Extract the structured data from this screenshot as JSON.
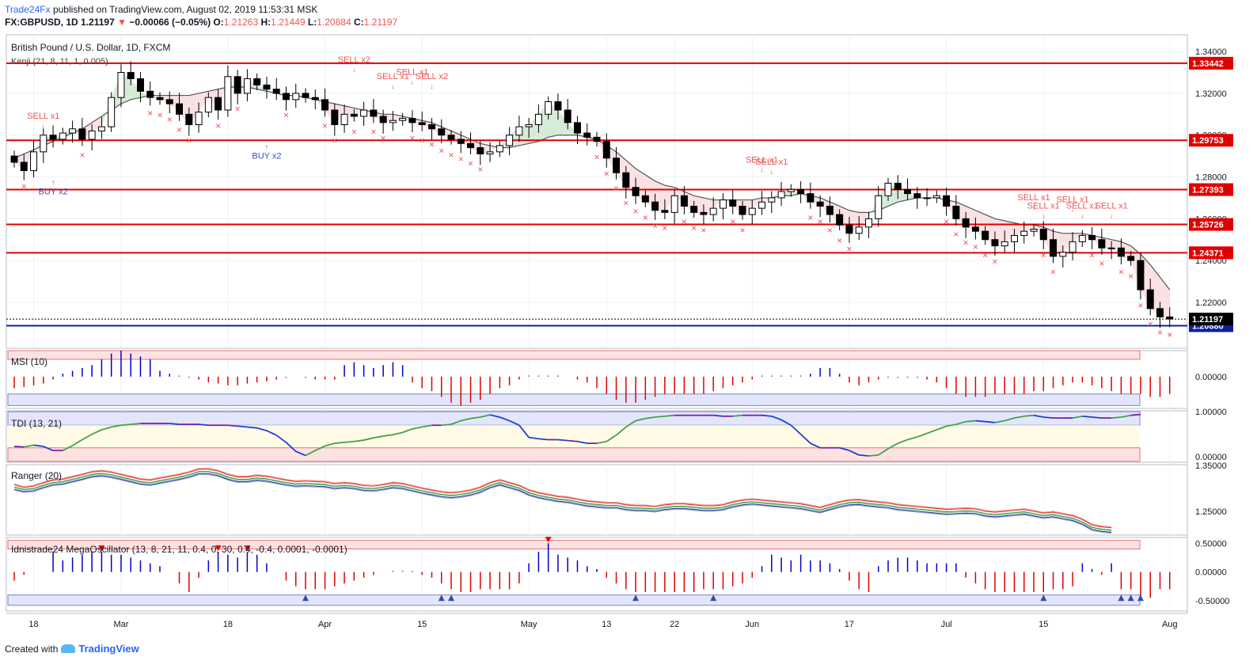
{
  "header": {
    "brand": "Trade24Fx",
    "published": "published on TradingView.com, August 02, 2019 11:53:31 MSK",
    "symbol": "FX:GBPUSD, 1D",
    "last": "1.21197",
    "change": "−0.00066 (−0.05%)",
    "ohlc": {
      "o_label": "O:",
      "o": "1.21263",
      "h_label": "H:",
      "h": "1.21449",
      "l_label": "L:",
      "l": "1.20884",
      "c_label": "C:",
      "c": "1.21197"
    }
  },
  "footer": {
    "created_with": "Created with",
    "brand": "TradingView"
  },
  "colors": {
    "up": "#ffffff",
    "down": "#000000",
    "red": "#e00000",
    "blue": "#0000cc",
    "navy": "#0d1f9c",
    "sell": "#ef5350",
    "buy": "#3f51b5"
  },
  "chart_data": [
    {
      "type": "candlestick",
      "title": "British Pound / U.S. Dollar, 1D, FXCM",
      "indicator_label": "Kenji (21, 8, 11, 1, 0.005)",
      "ylim": [
        1.198,
        1.348
      ],
      "y_ticks": [
        "1.34000",
        "1.32000",
        "1.30000",
        "1.28000",
        "1.26000",
        "1.24000",
        "1.22000"
      ],
      "x_ticks": [
        {
          "label": "18",
          "x": 2
        },
        {
          "label": "Mar",
          "x": 11
        },
        {
          "label": "18",
          "x": 22
        },
        {
          "label": "Apr",
          "x": 32
        },
        {
          "label": "15",
          "x": 42
        },
        {
          "label": "May",
          "x": 53
        },
        {
          "label": "13",
          "x": 61
        },
        {
          "label": "22",
          "x": 68
        },
        {
          "label": "Jun",
          "x": 76
        },
        {
          "label": "17",
          "x": 86
        },
        {
          "label": "Jul",
          "x": 96
        },
        {
          "label": "15",
          "x": 106
        },
        {
          "label": "Aug",
          "x": 119
        }
      ],
      "horizontal_levels": [
        {
          "value": 1.33442,
          "label": "1.33442"
        },
        {
          "value": 1.29753,
          "label": "1.29753"
        },
        {
          "value": 1.27393,
          "label": "1.27393"
        },
        {
          "value": 1.25726,
          "label": "1.25726"
        },
        {
          "value": 1.24371,
          "label": "1.24371"
        }
      ],
      "last_price": {
        "value": 1.21197,
        "label": "1.21197"
      },
      "support": {
        "value": 1.2088,
        "label": "1.20880"
      },
      "closes": [
        1.287,
        1.283,
        1.292,
        1.3,
        1.298,
        1.301,
        1.303,
        1.298,
        1.302,
        1.304,
        1.318,
        1.33,
        1.327,
        1.321,
        1.318,
        1.317,
        1.315,
        1.31,
        1.305,
        1.311,
        1.318,
        1.312,
        1.328,
        1.32,
        1.327,
        1.324,
        1.322,
        1.32,
        1.317,
        1.32,
        1.318,
        1.317,
        1.312,
        1.305,
        1.31,
        1.309,
        1.312,
        1.309,
        1.306,
        1.307,
        1.308,
        1.306,
        1.305,
        1.303,
        1.3,
        1.298,
        1.296,
        1.294,
        1.291,
        1.292,
        1.295,
        1.3,
        1.304,
        1.305,
        1.31,
        1.316,
        1.312,
        1.306,
        1.301,
        1.299,
        1.297,
        1.289,
        1.282,
        1.275,
        1.271,
        1.268,
        1.264,
        1.263,
        1.271,
        1.266,
        1.263,
        1.262,
        1.265,
        1.269,
        1.266,
        1.262,
        1.265,
        1.268,
        1.27,
        1.273,
        1.274,
        1.272,
        1.268,
        1.266,
        1.262,
        1.257,
        1.253,
        1.256,
        1.26,
        1.271,
        1.277,
        1.274,
        1.272,
        1.27,
        1.27,
        1.271,
        1.266,
        1.26,
        1.256,
        1.254,
        1.25,
        1.247,
        1.249,
        1.252,
        1.254,
        1.255,
        1.25,
        1.242,
        1.244,
        1.249,
        1.252,
        1.25,
        1.246,
        1.246,
        1.242,
        1.24,
        1.226,
        1.217,
        1.213,
        1.212
      ],
      "trend_line": [
        1.289,
        1.291,
        1.293,
        1.295,
        1.297,
        1.299,
        1.301,
        1.303,
        1.306,
        1.309,
        1.312,
        1.315,
        1.317,
        1.318,
        1.319,
        1.319,
        1.319,
        1.319,
        1.319,
        1.32,
        1.321,
        1.322,
        1.323,
        1.323,
        1.323,
        1.322,
        1.321,
        1.32,
        1.319,
        1.319,
        1.318,
        1.317,
        1.316,
        1.315,
        1.314,
        1.313,
        1.312,
        1.311,
        1.31,
        1.31,
        1.309,
        1.308,
        1.307,
        1.306,
        1.304,
        1.302,
        1.3,
        1.298,
        1.296,
        1.295,
        1.294,
        1.294,
        1.295,
        1.296,
        1.297,
        1.299,
        1.3,
        1.3,
        1.3,
        1.299,
        1.298,
        1.295,
        1.292,
        1.288,
        1.284,
        1.281,
        1.278,
        1.276,
        1.275,
        1.273,
        1.271,
        1.27,
        1.269,
        1.269,
        1.269,
        1.269,
        1.269,
        1.27,
        1.27,
        1.271,
        1.271,
        1.272,
        1.271,
        1.27,
        1.268,
        1.266,
        1.264,
        1.263,
        1.263,
        1.264,
        1.266,
        1.268,
        1.269,
        1.27,
        1.27,
        1.27,
        1.269,
        1.268,
        1.266,
        1.264,
        1.262,
        1.26,
        1.259,
        1.258,
        1.257,
        1.257,
        1.256,
        1.254,
        1.253,
        1.253,
        1.253,
        1.252,
        1.251,
        1.25,
        1.249,
        1.247,
        1.243,
        1.238,
        1.232,
        1.226
      ],
      "signals": [
        {
          "text": "SELL x1",
          "x": 3,
          "price": 1.301
        },
        {
          "text": "BUY x2",
          "x": 4,
          "price": 1.283
        },
        {
          "text": "BUY x2",
          "x": 26,
          "price": 1.3
        },
        {
          "text": "SELL x2",
          "x": 35,
          "price": 1.328
        },
        {
          "text": "SELL x1",
          "x": 39,
          "price": 1.32
        },
        {
          "text": "SELL x1",
          "x": 41,
          "price": 1.322
        },
        {
          "text": "SELL x2",
          "x": 43,
          "price": 1.32
        },
        {
          "text": "SELL x1",
          "x": 77,
          "price": 1.28
        },
        {
          "text": "SELL x1",
          "x": 78,
          "price": 1.279
        },
        {
          "text": "SELL x1",
          "x": 105,
          "price": 1.262
        },
        {
          "text": "SELL x1",
          "x": 106,
          "price": 1.258
        },
        {
          "text": "SELL x1",
          "x": 109,
          "price": 1.261
        },
        {
          "text": "SELL x1",
          "x": 110,
          "price": 1.258
        },
        {
          "text": "SELL x1",
          "x": 113,
          "price": 1.258
        }
      ]
    },
    {
      "type": "bar",
      "title": "MSI (10)",
      "ylim": [
        -0.55,
        0.45
      ],
      "y_ticks": [
        "0.00000"
      ],
      "values": [
        -0.2,
        -0.18,
        -0.15,
        -0.12,
        -0.05,
        0.05,
        0.1,
        0.15,
        0.2,
        0.3,
        0.4,
        0.45,
        0.4,
        0.35,
        0.3,
        0.1,
        0.05,
        0.02,
        -0.02,
        -0.05,
        -0.1,
        -0.12,
        -0.15,
        -0.15,
        -0.12,
        -0.1,
        -0.08,
        -0.05,
        -0.02,
        0.0,
        -0.02,
        -0.05,
        -0.05,
        -0.05,
        0.2,
        0.25,
        0.2,
        0.15,
        0.2,
        0.25,
        0.2,
        -0.1,
        -0.2,
        -0.25,
        -0.35,
        -0.45,
        -0.5,
        -0.45,
        -0.4,
        -0.3,
        -0.2,
        -0.15,
        -0.05,
        0.02,
        0.02,
        0.02,
        0.02,
        0.0,
        -0.05,
        -0.1,
        -0.2,
        -0.3,
        -0.4,
        -0.45,
        -0.45,
        -0.4,
        -0.35,
        -0.3,
        -0.3,
        -0.3,
        -0.3,
        -0.3,
        -0.25,
        -0.2,
        -0.15,
        -0.1,
        -0.05,
        0.02,
        0.02,
        0.02,
        0.02,
        0.02,
        0.05,
        0.15,
        0.15,
        0.05,
        -0.1,
        -0.15,
        -0.1,
        -0.05,
        -0.02,
        -0.02,
        -0.02,
        -0.02,
        -0.05,
        -0.1,
        -0.2,
        -0.3,
        -0.35,
        -0.35,
        -0.35,
        -0.3,
        -0.3,
        -0.3,
        -0.3,
        -0.25,
        -0.25,
        -0.2,
        -0.15,
        -0.1,
        -0.1,
        -0.15,
        -0.2,
        -0.25,
        -0.3,
        -0.3,
        -0.3,
        -0.35,
        -0.35,
        -0.3
      ]
    },
    {
      "type": "line",
      "title": "TDI (13, 21)",
      "ylim": [
        -0.12,
        1.02
      ],
      "y_ticks": [
        "1.00000",
        "0.00000"
      ],
      "values": [
        0.23,
        0.22,
        0.26,
        0.23,
        0.14,
        0.14,
        0.25,
        0.38,
        0.5,
        0.6,
        0.66,
        0.7,
        0.72,
        0.74,
        0.74,
        0.74,
        0.74,
        0.72,
        0.72,
        0.72,
        0.7,
        0.7,
        0.7,
        0.68,
        0.66,
        0.64,
        0.58,
        0.48,
        0.32,
        0.12,
        0.03,
        0.14,
        0.24,
        0.3,
        0.32,
        0.34,
        0.37,
        0.42,
        0.46,
        0.49,
        0.54,
        0.62,
        0.66,
        0.7,
        0.7,
        0.72,
        0.8,
        0.85,
        0.88,
        0.93,
        0.88,
        0.8,
        0.7,
        0.43,
        0.4,
        0.38,
        0.38,
        0.36,
        0.34,
        0.3,
        0.3,
        0.34,
        0.48,
        0.66,
        0.8,
        0.85,
        0.88,
        0.9,
        0.92,
        0.92,
        0.92,
        0.92,
        0.92,
        0.9,
        0.9,
        0.92,
        0.92,
        0.92,
        0.9,
        0.82,
        0.7,
        0.5,
        0.3,
        0.2,
        0.2,
        0.2,
        0.14,
        0.04,
        0.02,
        0.04,
        0.18,
        0.3,
        0.38,
        0.44,
        0.52,
        0.6,
        0.68,
        0.72,
        0.78,
        0.8,
        0.78,
        0.76,
        0.8,
        0.86,
        0.9,
        0.92,
        0.88,
        0.86,
        0.86,
        0.86,
        0.9,
        0.88,
        0.86,
        0.86,
        0.88,
        0.92,
        0.94
      ]
    },
    {
      "type": "line",
      "title": "Ranger (20)",
      "ylim": [
        1.198,
        1.352
      ],
      "y_ticks": [
        "1.35000",
        "1.25000"
      ],
      "series": [
        {
          "values": [
            1.308,
            1.302,
            1.305,
            1.312,
            1.318,
            1.32,
            1.325,
            1.33,
            1.336,
            1.338,
            1.335,
            1.33,
            1.325,
            1.32,
            1.318,
            1.322,
            1.326,
            1.33,
            1.335,
            1.342,
            1.342,
            1.338,
            1.33,
            1.325,
            1.325,
            1.328,
            1.326,
            1.322,
            1.318,
            1.315,
            1.316,
            1.315,
            1.314,
            1.31,
            1.312,
            1.31,
            1.306,
            1.305,
            1.308,
            1.312,
            1.31,
            1.305,
            1.3,
            1.296,
            1.292,
            1.29,
            1.292,
            1.296,
            1.302,
            1.312,
            1.318,
            1.312,
            1.306,
            1.296,
            1.29,
            1.286,
            1.282,
            1.28,
            1.276,
            1.272,
            1.27,
            1.268,
            1.268,
            1.264,
            1.262,
            1.262,
            1.26,
            1.264,
            1.266,
            1.266,
            1.264,
            1.262,
            1.262,
            1.264,
            1.27,
            1.274,
            1.276,
            1.274,
            1.272,
            1.27,
            1.268,
            1.266,
            1.262,
            1.258,
            1.264,
            1.27,
            1.274,
            1.275,
            1.272,
            1.27,
            1.268,
            1.264,
            1.262,
            1.26,
            1.258,
            1.256,
            1.254,
            1.255,
            1.256,
            1.255,
            1.25,
            1.248,
            1.25,
            1.252,
            1.254,
            1.25,
            1.246,
            1.248,
            1.244,
            1.24,
            1.232,
            1.22,
            1.216,
            1.214
          ]
        },
        {
          "values": [
            1.303,
            1.298,
            1.3,
            1.307,
            1.313,
            1.315,
            1.32,
            1.325,
            1.331,
            1.333,
            1.33,
            1.325,
            1.32,
            1.315,
            1.313,
            1.317,
            1.321,
            1.325,
            1.33,
            1.337,
            1.337,
            1.333,
            1.325,
            1.32,
            1.32,
            1.323,
            1.321,
            1.317,
            1.313,
            1.31,
            1.311,
            1.31,
            1.309,
            1.305,
            1.307,
            1.305,
            1.301,
            1.3,
            1.303,
            1.307,
            1.305,
            1.3,
            1.295,
            1.291,
            1.287,
            1.285,
            1.287,
            1.291,
            1.297,
            1.307,
            1.313,
            1.307,
            1.301,
            1.291,
            1.285,
            1.281,
            1.277,
            1.275,
            1.271,
            1.267,
            1.265,
            1.263,
            1.263,
            1.259,
            1.257,
            1.257,
            1.255,
            1.259,
            1.261,
            1.261,
            1.259,
            1.257,
            1.257,
            1.259,
            1.265,
            1.269,
            1.271,
            1.269,
            1.267,
            1.265,
            1.263,
            1.261,
            1.257,
            1.253,
            1.259,
            1.265,
            1.269,
            1.27,
            1.267,
            1.265,
            1.263,
            1.259,
            1.257,
            1.255,
            1.253,
            1.251,
            1.249,
            1.25,
            1.251,
            1.25,
            1.245,
            1.243,
            1.245,
            1.247,
            1.249,
            1.245,
            1.241,
            1.243,
            1.239,
            1.235,
            1.227,
            1.215,
            1.211,
            1.209
          ]
        },
        {
          "values": [
            1.298,
            1.293,
            1.295,
            1.302,
            1.308,
            1.31,
            1.315,
            1.32,
            1.326,
            1.328,
            1.325,
            1.32,
            1.315,
            1.31,
            1.308,
            1.312,
            1.316,
            1.32,
            1.325,
            1.332,
            1.332,
            1.328,
            1.32,
            1.315,
            1.315,
            1.318,
            1.316,
            1.312,
            1.308,
            1.305,
            1.306,
            1.305,
            1.304,
            1.3,
            1.302,
            1.3,
            1.296,
            1.295,
            1.298,
            1.302,
            1.3,
            1.295,
            1.29,
            1.286,
            1.282,
            1.28,
            1.282,
            1.286,
            1.292,
            1.302,
            1.308,
            1.302,
            1.296,
            1.286,
            1.28,
            1.276,
            1.272,
            1.27,
            1.266,
            1.262,
            1.26,
            1.258,
            1.258,
            1.254,
            1.252,
            1.252,
            1.25,
            1.254,
            1.256,
            1.256,
            1.254,
            1.252,
            1.252,
            1.254,
            1.26,
            1.264,
            1.266,
            1.264,
            1.262,
            1.26,
            1.258,
            1.256,
            1.252,
            1.248,
            1.254,
            1.26,
            1.264,
            1.265,
            1.262,
            1.26,
            1.258,
            1.254,
            1.252,
            1.25,
            1.248,
            1.246,
            1.244,
            1.245,
            1.246,
            1.245,
            1.24,
            1.238,
            1.24,
            1.242,
            1.244,
            1.24,
            1.236,
            1.238,
            1.234,
            1.23,
            1.222,
            1.21,
            1.206,
            1.204
          ]
        }
      ]
    },
    {
      "type": "bar",
      "title": "Idnistrade24 MegaOscillator (13, 8, 21, 11, 0.4, 0, 30, 0.4, -0.4, 0.0001, -0.0001)",
      "ylim": [
        -0.68,
        0.6
      ],
      "y_ticks": [
        "0.50000",
        "0.00000",
        "-0.50000"
      ],
      "values": [
        -0.15,
        -0.05,
        0.0,
        0.0,
        0.35,
        0.2,
        0.25,
        0.3,
        0.35,
        0.35,
        0.3,
        0.3,
        0.25,
        0.2,
        0.15,
        0.1,
        0.0,
        -0.2,
        -0.35,
        -0.1,
        0.2,
        0.35,
        0.3,
        0.25,
        0.35,
        0.3,
        0.15,
        0.0,
        -0.15,
        -0.25,
        -0.3,
        -0.3,
        -0.3,
        -0.25,
        -0.2,
        -0.15,
        -0.1,
        -0.05,
        0.0,
        0.02,
        0.02,
        0.02,
        -0.05,
        -0.1,
        -0.2,
        -0.3,
        -0.35,
        -0.35,
        -0.3,
        -0.3,
        -0.3,
        -0.3,
        -0.2,
        0.15,
        0.35,
        0.5,
        0.3,
        0.25,
        0.2,
        0.1,
        0.05,
        -0.1,
        -0.2,
        -0.3,
        -0.35,
        -0.35,
        -0.35,
        -0.35,
        -0.35,
        -0.35,
        -0.35,
        -0.3,
        -0.3,
        -0.3,
        -0.25,
        -0.2,
        -0.1,
        0.1,
        0.3,
        0.25,
        0.2,
        0.3,
        0.2,
        0.2,
        0.15,
        0.05,
        -0.15,
        -0.3,
        -0.35,
        0.1,
        0.2,
        0.25,
        0.25,
        0.2,
        0.15,
        0.15,
        0.15,
        0.15,
        -0.1,
        -0.2,
        -0.3,
        -0.35,
        -0.35,
        -0.35,
        -0.35,
        -0.35,
        -0.35,
        -0.3,
        -0.3,
        -0.25,
        0.15,
        0.05,
        -0.05,
        0.15,
        -0.3,
        -0.3,
        -0.5,
        -0.45,
        -0.3,
        -0.3
      ]
    }
  ]
}
